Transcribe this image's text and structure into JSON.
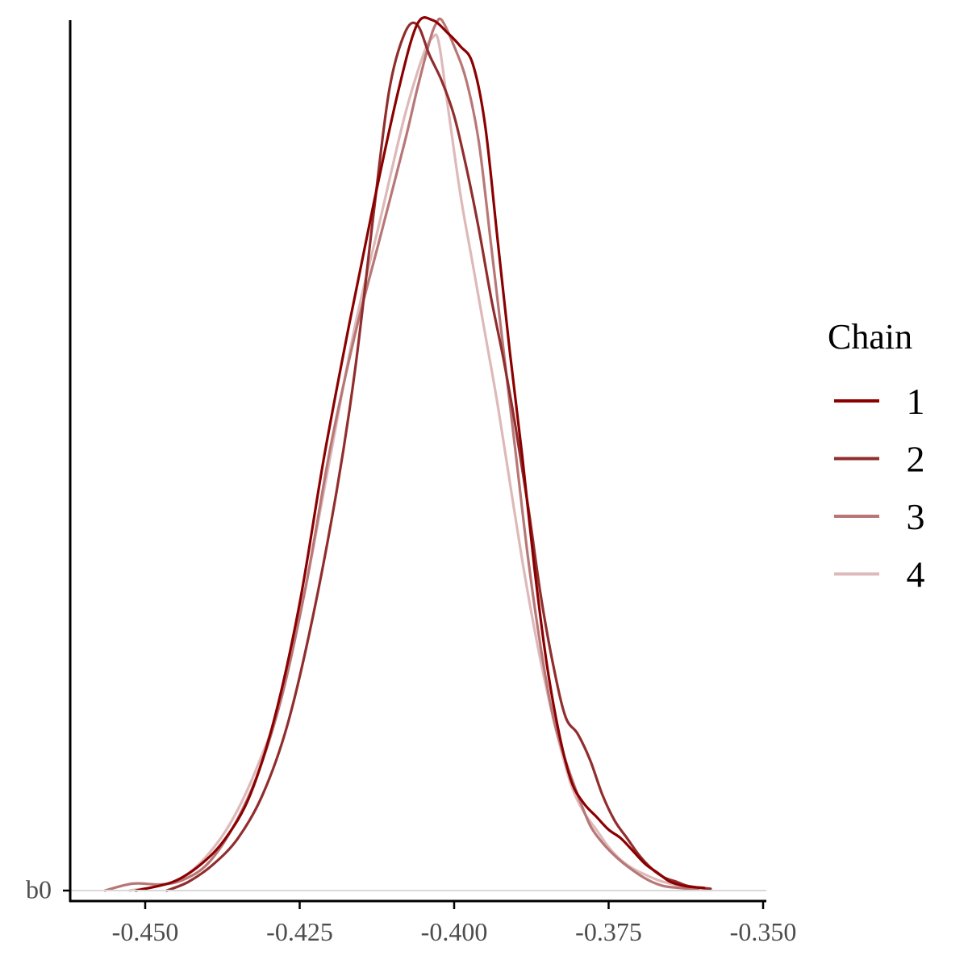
{
  "chart_data": {
    "type": "line",
    "title": "",
    "xlabel": "",
    "ylabel": "",
    "xlim": [
      -0.4575,
      -0.3495
    ],
    "x_ticks": [
      "-0.450",
      "-0.425",
      "-0.400",
      "-0.375",
      "-0.350"
    ],
    "x_tick_values": [
      -0.45,
      -0.425,
      -0.4,
      -0.375,
      -0.35
    ],
    "y_tick_label": "b0",
    "grid": false,
    "legend": {
      "title": "Chain",
      "placement": "right",
      "entries": [
        "1",
        "2",
        "3",
        "4"
      ]
    },
    "series": [
      {
        "name": "1",
        "color": "#8b0000",
        "x": [
          -0.4515,
          -0.4455,
          -0.441,
          -0.437,
          -0.433,
          -0.429,
          -0.425,
          -0.421,
          -0.417,
          -0.413,
          -0.409,
          -0.406,
          -0.4035,
          -0.401,
          -0.399,
          -0.397,
          -0.395,
          -0.393,
          -0.391,
          -0.389,
          -0.387,
          -0.385,
          -0.383,
          -0.381,
          -0.379,
          -0.377,
          -0.375,
          -0.373,
          -0.371,
          -0.369,
          -0.367,
          -0.365,
          -0.3625,
          -0.3595
        ],
        "y": [
          0.0,
          0.01,
          0.03,
          0.06,
          0.11,
          0.2,
          0.33,
          0.5,
          0.65,
          0.79,
          0.92,
          0.995,
          1.0,
          0.985,
          0.97,
          0.95,
          0.88,
          0.75,
          0.62,
          0.5,
          0.37,
          0.26,
          0.18,
          0.125,
          0.1,
          0.085,
          0.07,
          0.06,
          0.045,
          0.03,
          0.02,
          0.01,
          0.005,
          0.003
        ]
      },
      {
        "name": "2",
        "color": "#912d2d",
        "x": [
          -0.4465,
          -0.443,
          -0.439,
          -0.435,
          -0.431,
          -0.427,
          -0.423,
          -0.419,
          -0.416,
          -0.413,
          -0.4105,
          -0.408,
          -0.406,
          -0.404,
          -0.402,
          -0.4,
          -0.398,
          -0.396,
          -0.394,
          -0.392,
          -0.39,
          -0.388,
          -0.386,
          -0.384,
          -0.382,
          -0.38,
          -0.378,
          -0.376,
          -0.374,
          -0.372,
          -0.37,
          -0.368,
          -0.366,
          -0.364,
          -0.362,
          -0.3585
        ],
        "y": [
          0.0,
          0.01,
          0.03,
          0.06,
          0.11,
          0.19,
          0.31,
          0.46,
          0.6,
          0.78,
          0.92,
          0.985,
          0.995,
          0.96,
          0.93,
          0.89,
          0.83,
          0.76,
          0.68,
          0.61,
          0.53,
          0.44,
          0.34,
          0.26,
          0.2,
          0.18,
          0.15,
          0.11,
          0.08,
          0.06,
          0.04,
          0.025,
          0.015,
          0.01,
          0.005,
          0.002
        ]
      },
      {
        "name": "3",
        "color": "#b87777",
        "x": [
          -0.4565,
          -0.452,
          -0.4475,
          -0.444,
          -0.44,
          -0.436,
          -0.432,
          -0.428,
          -0.424,
          -0.42,
          -0.416,
          -0.412,
          -0.408,
          -0.406,
          -0.404,
          -0.403,
          -0.402,
          -0.4,
          -0.398,
          -0.396,
          -0.394,
          -0.392,
          -0.39,
          -0.388,
          -0.386,
          -0.384,
          -0.382,
          -0.38,
          -0.378,
          -0.376,
          -0.374,
          -0.372,
          -0.37,
          -0.368,
          -0.366,
          -0.3635,
          -0.3605
        ],
        "y": [
          0.0,
          0.008,
          0.007,
          0.012,
          0.03,
          0.07,
          0.13,
          0.22,
          0.35,
          0.51,
          0.64,
          0.75,
          0.86,
          0.92,
          0.975,
          0.995,
          1.0,
          0.97,
          0.93,
          0.86,
          0.74,
          0.62,
          0.5,
          0.38,
          0.28,
          0.2,
          0.15,
          0.11,
          0.075,
          0.055,
          0.04,
          0.028,
          0.018,
          0.01,
          0.005,
          0.003,
          0.001
        ]
      },
      {
        "name": "4",
        "color": "#deb9b9",
        "x": [
          -0.4525,
          -0.448,
          -0.444,
          -0.44,
          -0.436,
          -0.432,
          -0.428,
          -0.424,
          -0.42,
          -0.416,
          -0.412,
          -0.408,
          -0.405,
          -0.4035,
          -0.4025,
          -0.401,
          -0.399,
          -0.397,
          -0.395,
          -0.393,
          -0.391,
          -0.389,
          -0.387,
          -0.385,
          -0.383,
          -0.381,
          -0.379,
          -0.377,
          -0.375,
          -0.373,
          -0.371,
          -0.369,
          -0.367,
          -0.365,
          -0.362,
          -0.359
        ],
        "y": [
          0.0,
          0.005,
          0.015,
          0.04,
          0.08,
          0.14,
          0.22,
          0.35,
          0.5,
          0.65,
          0.77,
          0.89,
          0.96,
          0.98,
          0.975,
          0.9,
          0.8,
          0.72,
          0.64,
          0.56,
          0.47,
          0.38,
          0.3,
          0.23,
          0.17,
          0.12,
          0.09,
          0.07,
          0.05,
          0.035,
          0.025,
          0.018,
          0.012,
          0.008,
          0.004,
          0.002
        ]
      }
    ]
  }
}
